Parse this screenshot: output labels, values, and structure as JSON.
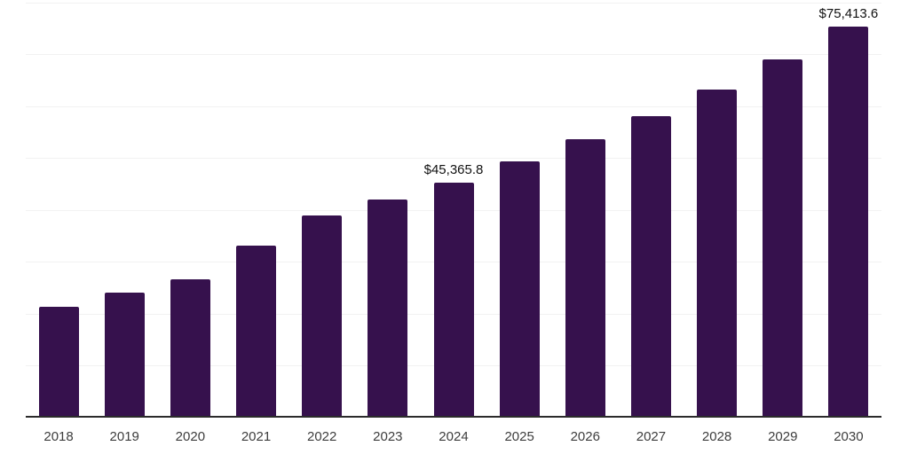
{
  "chart_data": {
    "type": "bar",
    "title": "",
    "xlabel": "",
    "ylabel": "",
    "categories": [
      "2018",
      "2019",
      "2020",
      "2021",
      "2022",
      "2023",
      "2024",
      "2025",
      "2026",
      "2027",
      "2028",
      "2029",
      "2030"
    ],
    "values": [
      21300,
      24150,
      26700,
      33200,
      39000,
      42050,
      45365.8,
      49350,
      53600,
      58200,
      63300,
      69100,
      75413.6
    ],
    "annotations": [
      {
        "category": "2024",
        "text": "$45,365.8"
      },
      {
        "category": "2030",
        "text": "$75,413.6"
      }
    ],
    "ylim": [
      0,
      80000
    ],
    "gridline_interval": 10000,
    "grid": "horizontal-only",
    "y_axis_tick_labels": "none",
    "legend": "none",
    "colors": {
      "bar": "#36114d",
      "axis": "#2b2b2b",
      "gridline": "#f2f2f2",
      "tick_label": "#3d3d3d",
      "data_label": "#111111",
      "background": "#ffffff"
    }
  }
}
